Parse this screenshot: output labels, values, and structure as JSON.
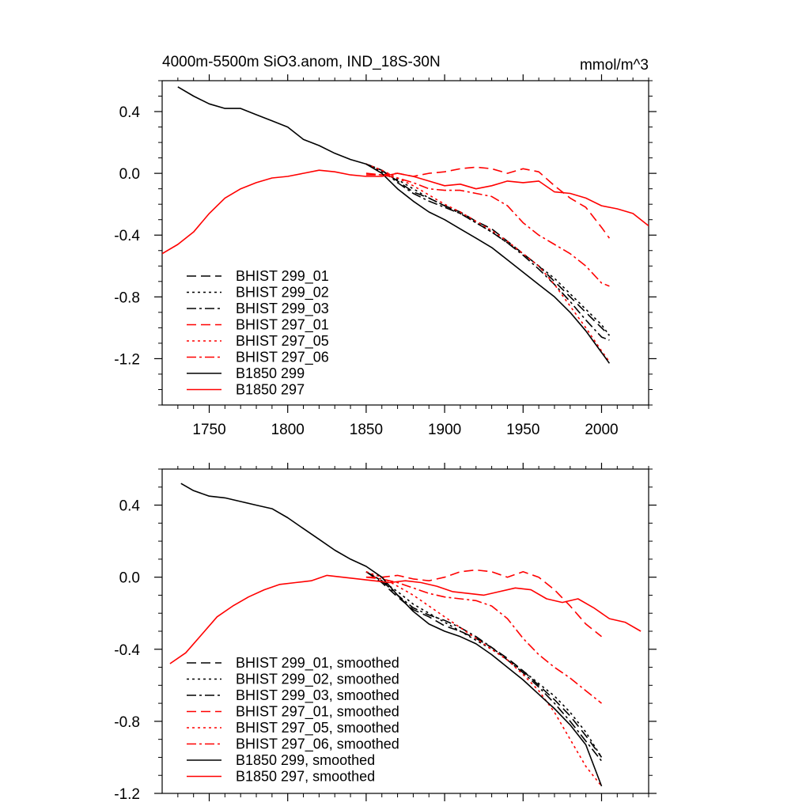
{
  "chart_data": [
    {
      "type": "line",
      "title": "4000m-5500m SiO3.anom, IND_18S-30N",
      "units": "mmol/m^3",
      "xlim": [
        1720,
        2030
      ],
      "ylim": [
        -1.5,
        0.6
      ],
      "xticks": [
        "1750",
        "1800",
        "1850",
        "1900",
        "1950",
        "2000"
      ],
      "yticks": [
        "0.4",
        "0.0",
        "-0.4",
        "-0.8",
        "-1.2"
      ],
      "legend_position": "bottom-left",
      "series": [
        {
          "name": "BHIST 299_01",
          "color": "#000000",
          "dash": "dash",
          "x": [
            1850,
            1860,
            1870,
            1880,
            1890,
            1900,
            1910,
            1920,
            1930,
            1940,
            1950,
            1960,
            1970,
            1980,
            1990,
            2000,
            2005
          ],
          "y": [
            0.06,
            0.02,
            -0.05,
            -0.12,
            -0.16,
            -0.21,
            -0.25,
            -0.31,
            -0.36,
            -0.44,
            -0.52,
            -0.6,
            -0.7,
            -0.8,
            -0.9,
            -1.0,
            -1.05
          ]
        },
        {
          "name": "BHIST 299_02",
          "color": "#000000",
          "dash": "dot",
          "x": [
            1850,
            1860,
            1870,
            1880,
            1890,
            1900,
            1910,
            1920,
            1930,
            1940,
            1950,
            1960,
            1970,
            1980,
            1990,
            2000,
            2005
          ],
          "y": [
            0.06,
            0.01,
            -0.04,
            -0.1,
            -0.16,
            -0.21,
            -0.26,
            -0.32,
            -0.38,
            -0.45,
            -0.52,
            -0.6,
            -0.68,
            -0.78,
            -0.88,
            -0.98,
            -1.05
          ]
        },
        {
          "name": "BHIST 299_03",
          "color": "#000000",
          "dash": "dashdot",
          "x": [
            1850,
            1860,
            1870,
            1880,
            1890,
            1900,
            1910,
            1920,
            1930,
            1940,
            1950,
            1960,
            1970,
            1980,
            1990,
            2000,
            2005
          ],
          "y": [
            0.06,
            0.02,
            -0.06,
            -0.13,
            -0.18,
            -0.22,
            -0.26,
            -0.32,
            -0.38,
            -0.45,
            -0.53,
            -0.62,
            -0.72,
            -0.83,
            -0.95,
            -1.06,
            -1.08
          ]
        },
        {
          "name": "BHIST 297_01",
          "color": "#ff0000",
          "dash": "dash",
          "x": [
            1850,
            1860,
            1870,
            1880,
            1890,
            1900,
            1910,
            1920,
            1930,
            1940,
            1950,
            1960,
            1970,
            1980,
            1990,
            2000,
            2005
          ],
          "y": [
            -0.01,
            -0.01,
            0.0,
            -0.02,
            0.0,
            0.01,
            0.03,
            0.04,
            0.03,
            0.0,
            0.03,
            0.01,
            -0.08,
            -0.16,
            -0.22,
            -0.35,
            -0.42
          ]
        },
        {
          "name": "BHIST 297_05",
          "color": "#ff0000",
          "dash": "dot",
          "x": [
            1850,
            1860,
            1870,
            1880,
            1890,
            1900,
            1910,
            1920,
            1930,
            1940,
            1950,
            1960,
            1970,
            1980,
            1990,
            2000,
            2005
          ],
          "y": [
            0.06,
            0.02,
            -0.03,
            -0.08,
            -0.14,
            -0.2,
            -0.25,
            -0.31,
            -0.37,
            -0.44,
            -0.52,
            -0.6,
            -0.72,
            -0.86,
            -1.0,
            -1.15,
            -1.22
          ]
        },
        {
          "name": "BHIST 297_06",
          "color": "#ff0000",
          "dash": "dashdot",
          "x": [
            1850,
            1860,
            1870,
            1880,
            1890,
            1900,
            1910,
            1920,
            1930,
            1940,
            1950,
            1960,
            1970,
            1980,
            1990,
            2000,
            2005
          ],
          "y": [
            0.0,
            -0.01,
            -0.03,
            -0.06,
            -0.1,
            -0.11,
            -0.11,
            -0.13,
            -0.15,
            -0.21,
            -0.32,
            -0.4,
            -0.46,
            -0.52,
            -0.6,
            -0.71,
            -0.73
          ]
        },
        {
          "name": "B1850 299",
          "color": "#000000",
          "dash": "solid",
          "x": [
            1730,
            1740,
            1750,
            1760,
            1770,
            1780,
            1790,
            1800,
            1810,
            1820,
            1830,
            1840,
            1850,
            1860,
            1870,
            1880,
            1890,
            1900,
            1910,
            1920,
            1930,
            1940,
            1950,
            1960,
            1970,
            1980,
            1990,
            2000,
            2005
          ],
          "y": [
            0.56,
            0.5,
            0.45,
            0.42,
            0.42,
            0.38,
            0.34,
            0.3,
            0.22,
            0.18,
            0.13,
            0.09,
            0.06,
            0.0,
            -0.1,
            -0.18,
            -0.25,
            -0.3,
            -0.36,
            -0.42,
            -0.48,
            -0.56,
            -0.64,
            -0.72,
            -0.8,
            -0.9,
            -1.02,
            -1.16,
            -1.23
          ]
        },
        {
          "name": "B1850 297",
          "color": "#ff0000",
          "dash": "solid",
          "x": [
            1720,
            1730,
            1740,
            1750,
            1760,
            1770,
            1780,
            1790,
            1800,
            1810,
            1820,
            1830,
            1840,
            1850,
            1860,
            1870,
            1880,
            1890,
            1900,
            1910,
            1920,
            1930,
            1940,
            1950,
            1960,
            1970,
            1980,
            1990,
            2000,
            2010,
            2020,
            2030
          ],
          "y": [
            -0.52,
            -0.46,
            -0.38,
            -0.26,
            -0.16,
            -0.1,
            -0.06,
            -0.03,
            -0.02,
            0.0,
            0.02,
            0.01,
            -0.01,
            -0.02,
            -0.02,
            0.0,
            -0.02,
            -0.05,
            -0.08,
            -0.07,
            -0.1,
            -0.08,
            -0.05,
            -0.06,
            -0.05,
            -0.12,
            -0.13,
            -0.16,
            -0.21,
            -0.23,
            -0.26,
            -0.34
          ]
        }
      ]
    },
    {
      "type": "line",
      "title": "",
      "xlim": [
        1720,
        2030
      ],
      "ylim": [
        -1.2,
        0.6
      ],
      "yticks": [
        "0.4",
        "0.0",
        "-0.4",
        "-0.8",
        "-1.2"
      ],
      "legend_position": "bottom-left",
      "series": [
        {
          "name": "BHIST 299_01, smoothed",
          "color": "#000000",
          "dash": "dash",
          "x": [
            1850,
            1860,
            1870,
            1880,
            1890,
            1900,
            1910,
            1920,
            1930,
            1940,
            1950,
            1960,
            1970,
            1980,
            1990,
            2000
          ],
          "y": [
            0.03,
            -0.03,
            -0.11,
            -0.18,
            -0.22,
            -0.27,
            -0.3,
            -0.34,
            -0.39,
            -0.45,
            -0.52,
            -0.6,
            -0.68,
            -0.77,
            -0.88,
            -1.0
          ]
        },
        {
          "name": "BHIST 299_02, smoothed",
          "color": "#000000",
          "dash": "dot",
          "x": [
            1850,
            1860,
            1870,
            1880,
            1890,
            1900,
            1910,
            1920,
            1930,
            1940,
            1950,
            1960,
            1970,
            1980,
            1990,
            2000
          ],
          "y": [
            0.03,
            -0.02,
            -0.08,
            -0.15,
            -0.2,
            -0.25,
            -0.3,
            -0.35,
            -0.4,
            -0.46,
            -0.52,
            -0.59,
            -0.66,
            -0.75,
            -0.86,
            -1.0
          ]
        },
        {
          "name": "BHIST 299_03, smoothed",
          "color": "#000000",
          "dash": "dashdot",
          "x": [
            1850,
            1860,
            1870,
            1880,
            1890,
            1900,
            1910,
            1920,
            1930,
            1940,
            1950,
            1960,
            1970,
            1980,
            1990,
            2000
          ],
          "y": [
            0.03,
            -0.02,
            -0.1,
            -0.17,
            -0.21,
            -0.24,
            -0.28,
            -0.33,
            -0.39,
            -0.46,
            -0.53,
            -0.61,
            -0.7,
            -0.8,
            -0.91,
            -1.02
          ]
        },
        {
          "name": "BHIST 297_01, smoothed",
          "color": "#ff0000",
          "dash": "dash",
          "x": [
            1850,
            1860,
            1870,
            1880,
            1890,
            1900,
            1910,
            1920,
            1930,
            1940,
            1950,
            1960,
            1970,
            1980,
            1990,
            2000
          ],
          "y": [
            0.0,
            0.0,
            0.01,
            -0.01,
            -0.02,
            0.0,
            0.03,
            0.04,
            0.03,
            0.0,
            0.03,
            0.0,
            -0.07,
            -0.16,
            -0.26,
            -0.33
          ]
        },
        {
          "name": "BHIST 297_05, smoothed",
          "color": "#ff0000",
          "dash": "dot",
          "x": [
            1850,
            1860,
            1870,
            1880,
            1890,
            1900,
            1910,
            1920,
            1930,
            1940,
            1950,
            1960,
            1970,
            1980,
            1990,
            2000
          ],
          "y": [
            0.03,
            0.0,
            -0.05,
            -0.1,
            -0.16,
            -0.22,
            -0.28,
            -0.34,
            -0.4,
            -0.46,
            -0.54,
            -0.63,
            -0.75,
            -0.9,
            -1.05,
            -1.16
          ]
        },
        {
          "name": "BHIST 297_06, smoothed",
          "color": "#ff0000",
          "dash": "dashdot",
          "x": [
            1850,
            1860,
            1870,
            1880,
            1890,
            1900,
            1910,
            1920,
            1930,
            1940,
            1950,
            1960,
            1970,
            1980,
            1990,
            2000
          ],
          "y": [
            0.0,
            -0.01,
            -0.03,
            -0.06,
            -0.09,
            -0.11,
            -0.12,
            -0.13,
            -0.16,
            -0.23,
            -0.34,
            -0.43,
            -0.5,
            -0.56,
            -0.63,
            -0.7
          ]
        },
        {
          "name": "B1850 299, smoothed",
          "color": "#000000",
          "dash": "solid",
          "x": [
            1732,
            1740,
            1750,
            1760,
            1770,
            1780,
            1790,
            1800,
            1810,
            1820,
            1830,
            1840,
            1850,
            1860,
            1870,
            1880,
            1890,
            1900,
            1910,
            1920,
            1930,
            1940,
            1950,
            1960,
            1970,
            1980,
            1990,
            2000
          ],
          "y": [
            0.52,
            0.48,
            0.45,
            0.44,
            0.42,
            0.4,
            0.38,
            0.33,
            0.27,
            0.21,
            0.15,
            0.1,
            0.06,
            0.0,
            -0.1,
            -0.19,
            -0.26,
            -0.3,
            -0.33,
            -0.37,
            -0.43,
            -0.5,
            -0.57,
            -0.65,
            -0.73,
            -0.82,
            -0.93,
            -1.16
          ]
        },
        {
          "name": "B1850 297, smoothed",
          "color": "#ff0000",
          "dash": "solid",
          "x": [
            1725,
            1735,
            1745,
            1755,
            1765,
            1775,
            1785,
            1795,
            1805,
            1815,
            1825,
            1835,
            1845,
            1855,
            1865,
            1875,
            1885,
            1895,
            1905,
            1915,
            1925,
            1935,
            1945,
            1955,
            1965,
            1975,
            1985,
            1995,
            2005,
            2015,
            2025
          ],
          "y": [
            -0.48,
            -0.42,
            -0.32,
            -0.22,
            -0.16,
            -0.11,
            -0.07,
            -0.04,
            -0.03,
            -0.02,
            0.01,
            0.0,
            -0.01,
            -0.02,
            -0.03,
            -0.02,
            -0.03,
            -0.05,
            -0.08,
            -0.09,
            -0.1,
            -0.08,
            -0.06,
            -0.07,
            -0.12,
            -0.14,
            -0.12,
            -0.17,
            -0.23,
            -0.25,
            -0.3
          ]
        }
      ]
    }
  ]
}
